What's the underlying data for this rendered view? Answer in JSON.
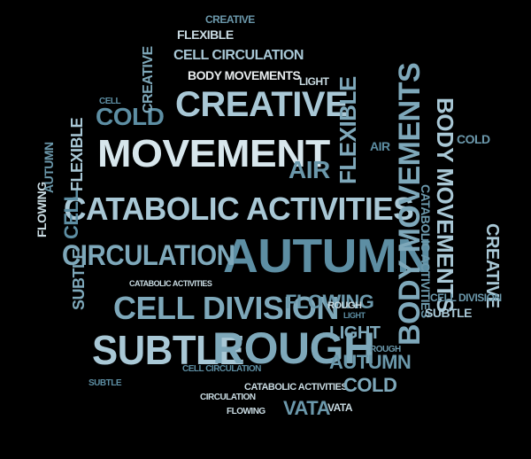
{
  "cloud": {
    "words": {
      "movement": "MOVEMENT",
      "creative": "CREATIVE",
      "catabolic_activities": "CATABOLIC ACTIVITIES",
      "autumn": "AUTUMN",
      "circulation": "CIRCULATION",
      "cell_division": "CELL DIVISION",
      "subtle": "SUBTLE",
      "rough": "ROUGH",
      "body_movements": "BODY MOVEMENTS",
      "body_movements_2": "BODY MOVEMENTS",
      "flexible": "FLEXIBLE",
      "cold": "COLD",
      "air": "AIR",
      "flowing": "FLOWING",
      "light": "LIGHT",
      "vata": "VATA",
      "cell_circulation": "CELL CIRCULATION",
      "body_movements_small": "BODY MOVEMENTS",
      "flexible_small": "FLEXIBLE",
      "creative_small": "CREATIVE",
      "autumn_small": "AUTUMN",
      "catabolic_small": "CATABOLIC ACTIVITIES",
      "cold_small": "COLD",
      "creative_right": "CREATIVE",
      "catabolic_right": "CATABOLIC ACTIVITIES",
      "cell_left": "CELL",
      "flowing_left": "FLOWING",
      "subtle_left": "SUBTLE",
      "air_small": "AIR",
      "light_small": "LIGHT",
      "vata_small": "VATA",
      "catabolic_tiny": "CATABOLIC ACTIVITIES",
      "cell_circulation_2": "CELL CIRCULATION",
      "rough_small": "ROUGH",
      "circulation_small": "CIRCULATION",
      "cell_division_small": "CELL DIVISION",
      "subtle_small": "SUBTLE",
      "creative_left": "CREATIVE",
      "autumn_left": "AUTUMN",
      "flexible_left": "FLEXIBLE",
      "cold_right": "COLD",
      "cell_tiny": "CELL",
      "rough_tiny": "ROUGH",
      "light_tiny": "LIGHT",
      "flowing_tiny": "FLOWING",
      "subtle_tiny": "SUBTLE"
    }
  }
}
